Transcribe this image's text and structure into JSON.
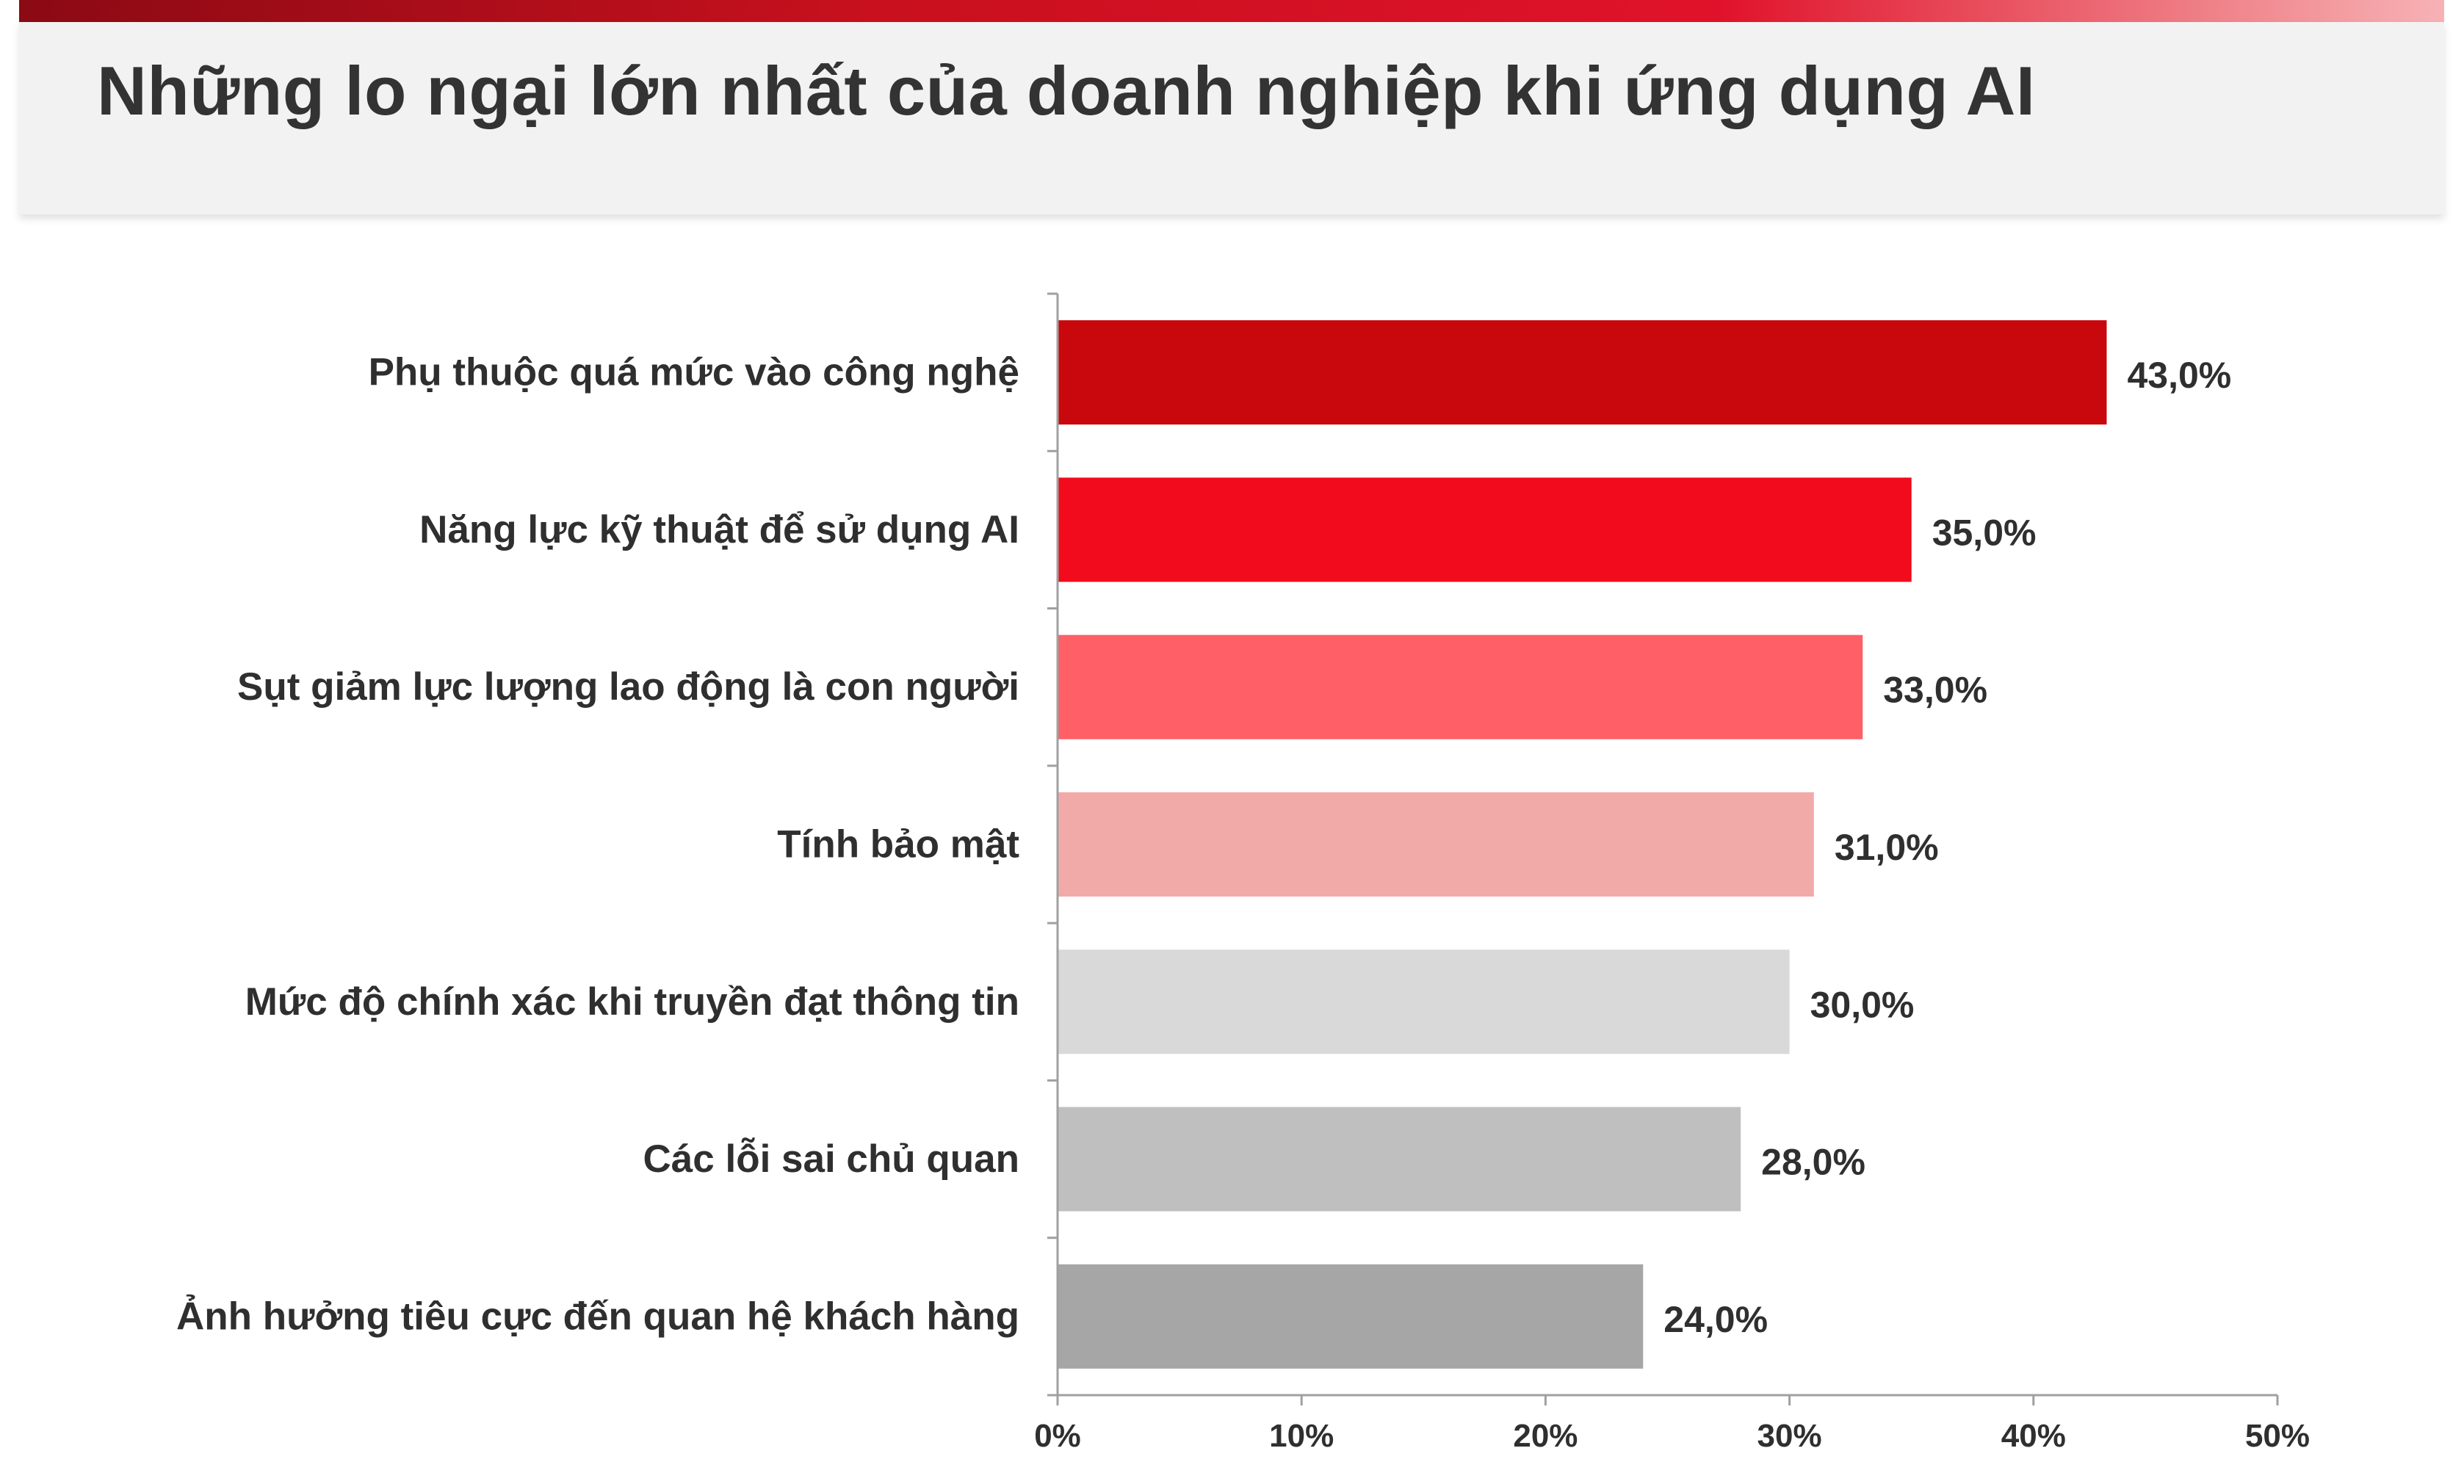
{
  "header": {
    "title": "Những lo ngại lớn nhất của doanh nghiệp khi ứng dụng AI"
  },
  "chart_data": {
    "type": "bar",
    "orientation": "horizontal",
    "title": "Những lo ngại lớn nhất của doanh nghiệp khi ứng dụng AI",
    "xlabel": "",
    "ylabel": "",
    "xlim": [
      0,
      50
    ],
    "x_ticks": [
      "0%",
      "10%",
      "20%",
      "30%",
      "40%",
      "50%"
    ],
    "grid": false,
    "legend": "none",
    "categories": [
      "Phụ thuộc quá mức vào công nghệ",
      "Năng lực kỹ thuật để sử dụng AI",
      "Sụt giảm lực lượng lao động là con người",
      "Tính bảo mật",
      "Mức độ chính xác khi truyền đạt thông tin",
      "Các lỗi sai chủ quan",
      "Ảnh hưởng tiêu cực đến quan hệ khách hàng"
    ],
    "values": [
      43.0,
      35.0,
      33.0,
      31.0,
      30.0,
      28.0,
      24.0
    ],
    "value_labels": [
      "43,0%",
      "35,0%",
      "33,0%",
      "31,0%",
      "30,0%",
      "28,0%",
      "24,0%"
    ],
    "bar_colors": [
      "#c9080d",
      "#f20a1d",
      "#ff5f66",
      "#f2aaa9",
      "#d9d9d9",
      "#bfbfbf",
      "#a6a6a6"
    ]
  },
  "colors": {
    "title_text": "#333333",
    "axis": "#a0a0a0",
    "text": "#2f2f2f",
    "title_bar_bg": "#f2f2f2"
  }
}
